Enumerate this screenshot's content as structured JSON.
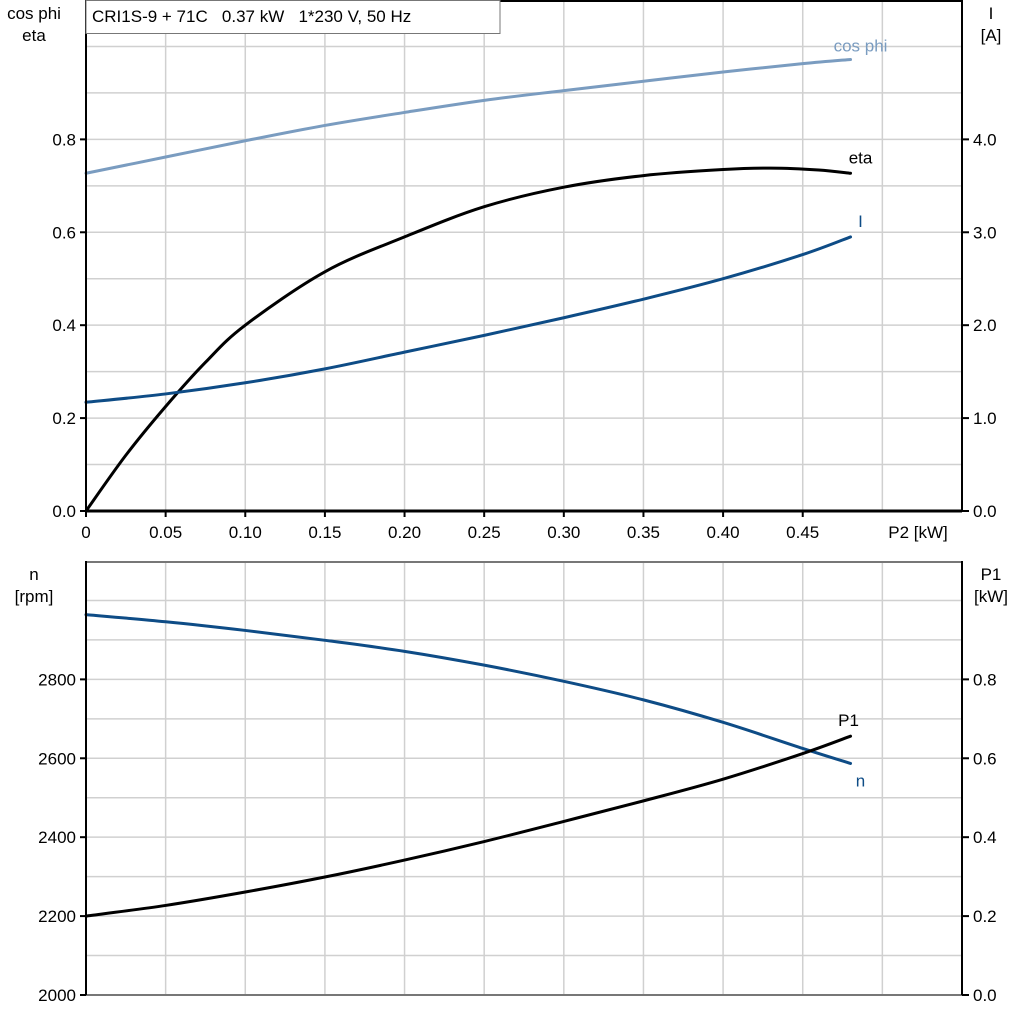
{
  "chart_data": [
    {
      "type": "line",
      "title": "CRI1S-9 + 71C   0.37 kW   1*230 V, 50 Hz",
      "xlabel": "P2 [kW]",
      "ylabel_left": [
        "cos phi",
        "eta"
      ],
      "ylabel_right": [
        "I",
        "[A]"
      ],
      "xlim": [
        0,
        0.55
      ],
      "ylim_left": [
        0,
        1.1
      ],
      "ylim_right": [
        0,
        5.5
      ],
      "x_ticks": [
        "0",
        "0.05",
        "0.10",
        "0.15",
        "0.20",
        "0.25",
        "0.30",
        "0.35",
        "0.40",
        "0.45"
      ],
      "y_ticks_left": [
        "0.0",
        "0.2",
        "0.4",
        "0.6",
        "0.8"
      ],
      "y_ticks_right": [
        "0.0",
        "1.0",
        "2.0",
        "3.0",
        "4.0"
      ],
      "grid": true,
      "series": [
        {
          "name": "cos phi",
          "axis": "left",
          "color": "#7a9cc0",
          "x": [
            0,
            0.05,
            0.1,
            0.15,
            0.2,
            0.25,
            0.3,
            0.35,
            0.4,
            0.45,
            0.48
          ],
          "y": [
            0.727,
            0.762,
            0.797,
            0.83,
            0.858,
            0.884,
            0.905,
            0.925,
            0.945,
            0.963,
            0.972
          ]
        },
        {
          "name": "eta",
          "axis": "left",
          "color": "#000000",
          "x": [
            0,
            0.025,
            0.05,
            0.075,
            0.1,
            0.15,
            0.2,
            0.25,
            0.3,
            0.35,
            0.4,
            0.43,
            0.46,
            0.48
          ],
          "y": [
            0,
            0.12,
            0.225,
            0.32,
            0.4,
            0.515,
            0.59,
            0.655,
            0.697,
            0.722,
            0.735,
            0.738,
            0.734,
            0.727
          ]
        },
        {
          "name": "I",
          "axis": "right",
          "color": "#0e4c86",
          "x": [
            0,
            0.05,
            0.1,
            0.15,
            0.2,
            0.25,
            0.3,
            0.35,
            0.4,
            0.45,
            0.48
          ],
          "y": [
            1.17,
            1.26,
            1.38,
            1.53,
            1.71,
            1.89,
            2.08,
            2.28,
            2.5,
            2.76,
            2.95
          ]
        }
      ]
    },
    {
      "type": "line",
      "xlim": [
        0,
        0.55
      ],
      "ylabel_left": [
        "n",
        "[rpm]"
      ],
      "ylabel_right": [
        "P1",
        "[kW]"
      ],
      "ylim_left": [
        2000,
        3100
      ],
      "ylim_right": [
        0,
        1.1
      ],
      "y_ticks_left": [
        "2000",
        "2200",
        "2400",
        "2600",
        "2800"
      ],
      "y_ticks_right": [
        "0.0",
        "0.2",
        "0.4",
        "0.6",
        "0.8"
      ],
      "grid": true,
      "series": [
        {
          "name": "n",
          "axis": "left",
          "color": "#0e4c86",
          "x": [
            0,
            0.05,
            0.1,
            0.15,
            0.2,
            0.25,
            0.3,
            0.35,
            0.4,
            0.45,
            0.48
          ],
          "y": [
            2964,
            2946,
            2924,
            2899,
            2871,
            2836,
            2795,
            2748,
            2691,
            2625,
            2587
          ]
        },
        {
          "name": "P1",
          "axis": "right",
          "color": "#000000",
          "x": [
            0,
            0.05,
            0.1,
            0.15,
            0.2,
            0.25,
            0.3,
            0.35,
            0.4,
            0.45,
            0.48
          ],
          "y": [
            0.2,
            0.227,
            0.261,
            0.299,
            0.342,
            0.389,
            0.44,
            0.492,
            0.547,
            0.612,
            0.656
          ]
        }
      ]
    }
  ]
}
